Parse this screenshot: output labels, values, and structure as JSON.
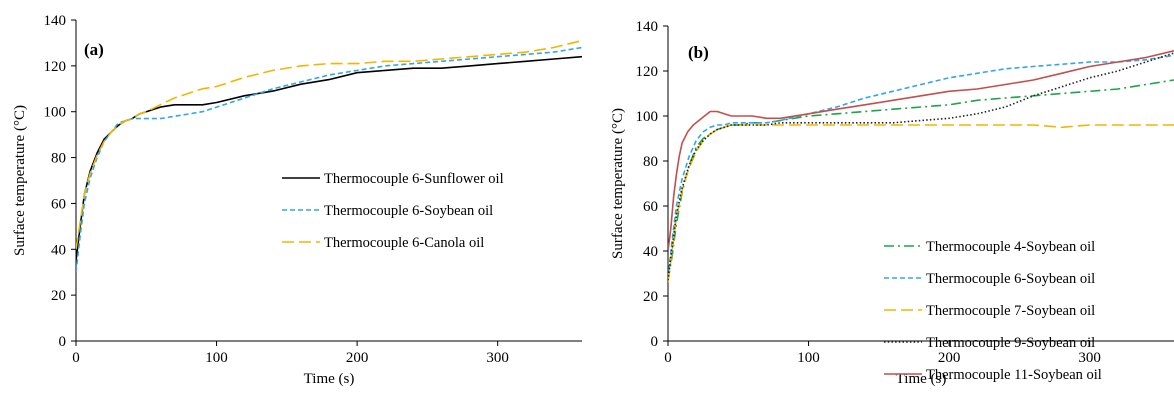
{
  "chart_data": [
    {
      "type": "line",
      "panel_label": "(a)",
      "xlabel": "Time (s)",
      "ylabel": "Surface temperature (°C)",
      "xlim": [
        0,
        360
      ],
      "ylim": [
        0,
        140
      ],
      "xticks": [
        0,
        100,
        200,
        300
      ],
      "yticks": [
        0,
        20,
        40,
        60,
        80,
        100,
        120,
        140
      ],
      "grid": false,
      "legend_position": "center-right",
      "series": [
        {
          "name": "Thermocouple 6-Sunflower oil",
          "color": "#000000",
          "dash": "solid",
          "x": [
            0,
            3,
            6,
            10,
            15,
            20,
            25,
            30,
            35,
            40,
            45,
            50,
            60,
            70,
            80,
            90,
            100,
            120,
            140,
            160,
            180,
            200,
            220,
            240,
            260,
            280,
            300,
            320,
            340,
            360
          ],
          "y": [
            35,
            50,
            64,
            74,
            82,
            88,
            91,
            94,
            96,
            97,
            99,
            100,
            102,
            103,
            103,
            103,
            104,
            107,
            109,
            112,
            114,
            117,
            118,
            119,
            119,
            120,
            121,
            122,
            123,
            124
          ]
        },
        {
          "name": "Thermocouple 6-Soybean oil",
          "color": "#33A6E6",
          "dash": "short",
          "x": [
            0,
            3,
            6,
            10,
            15,
            20,
            25,
            30,
            35,
            40,
            45,
            50,
            60,
            70,
            80,
            90,
            100,
            120,
            140,
            160,
            180,
            200,
            220,
            240,
            260,
            280,
            300,
            320,
            340,
            360
          ],
          "y": [
            30,
            46,
            60,
            71,
            80,
            87,
            91,
            95,
            96,
            97,
            97,
            97,
            97,
            98,
            99,
            100,
            102,
            106,
            110,
            113,
            116,
            118,
            120,
            121,
            122,
            123,
            124,
            125,
            126,
            128
          ]
        },
        {
          "name": "Thermocouple 6-Canola oil",
          "color": "#F2B600",
          "dash": "long",
          "x": [
            0,
            3,
            6,
            10,
            15,
            20,
            25,
            30,
            35,
            40,
            45,
            50,
            60,
            70,
            80,
            90,
            100,
            120,
            140,
            160,
            180,
            200,
            220,
            240,
            260,
            280,
            300,
            320,
            340,
            360
          ],
          "y": [
            40,
            52,
            64,
            73,
            81,
            87,
            91,
            94,
            96,
            97,
            99,
            100,
            103,
            106,
            108,
            110,
            111,
            115,
            118,
            120,
            121,
            121,
            122,
            122,
            123,
            124,
            125,
            126,
            128,
            131
          ]
        }
      ]
    },
    {
      "type": "line",
      "panel_label": "(b)",
      "xlabel": "Time (s)",
      "ylabel": "Surface temperature (°C)",
      "xlim": [
        0,
        360
      ],
      "ylim": [
        0,
        140
      ],
      "xticks": [
        0,
        100,
        200,
        300
      ],
      "yticks": [
        0,
        20,
        40,
        60,
        80,
        100,
        120,
        140
      ],
      "grid": false,
      "legend_position": "center-right",
      "series": [
        {
          "name": "Thermocouple 4-Soybean oil",
          "color": "#1FA34A",
          "dash": "dashdot",
          "x": [
            0,
            3,
            6,
            10,
            15,
            20,
            25,
            30,
            35,
            40,
            45,
            50,
            60,
            70,
            80,
            100,
            120,
            140,
            160,
            180,
            200,
            220,
            240,
            260,
            280,
            300,
            320,
            340,
            360
          ],
          "y": [
            27,
            38,
            52,
            66,
            78,
            86,
            90,
            92,
            94,
            95,
            96,
            96,
            97,
            97,
            98,
            100,
            101,
            102,
            103,
            104,
            105,
            107,
            108,
            109,
            110,
            111,
            112,
            114,
            116
          ]
        },
        {
          "name": "Thermocouple 6-Soybean oil",
          "color": "#33A6E6",
          "dash": "short",
          "x": [
            0,
            3,
            6,
            10,
            15,
            20,
            25,
            30,
            35,
            40,
            45,
            50,
            60,
            70,
            80,
            100,
            120,
            140,
            160,
            180,
            200,
            220,
            240,
            260,
            280,
            300,
            320,
            340,
            360
          ],
          "y": [
            28,
            45,
            60,
            72,
            82,
            89,
            93,
            95,
            96,
            96,
            97,
            97,
            97,
            97,
            98,
            101,
            104,
            108,
            111,
            114,
            117,
            119,
            121,
            122,
            123,
            124,
            124,
            125,
            127
          ]
        },
        {
          "name": "Thermocouple 7-Soybean oil",
          "color": "#F2B600",
          "dash": "long",
          "x": [
            0,
            3,
            6,
            10,
            15,
            20,
            25,
            30,
            35,
            40,
            45,
            50,
            60,
            70,
            80,
            100,
            120,
            140,
            160,
            180,
            200,
            220,
            240,
            260,
            280,
            300,
            320,
            340,
            360
          ],
          "y": [
            26,
            40,
            55,
            67,
            77,
            84,
            89,
            92,
            94,
            95,
            96,
            96,
            96,
            96,
            96,
            96,
            96,
            96,
            96,
            96,
            96,
            96,
            96,
            96,
            95,
            96,
            96,
            96,
            96
          ]
        },
        {
          "name": "Thermocouple 9-Soybean oil",
          "color": "#222222",
          "dash": "dotted",
          "x": [
            0,
            3,
            6,
            10,
            15,
            20,
            25,
            30,
            35,
            40,
            45,
            50,
            60,
            70,
            80,
            100,
            120,
            140,
            160,
            180,
            200,
            220,
            240,
            260,
            280,
            300,
            320,
            340,
            360
          ],
          "y": [
            27,
            42,
            56,
            68,
            78,
            85,
            89,
            92,
            94,
            95,
            96,
            96,
            96,
            96,
            97,
            97,
            97,
            97,
            97,
            98,
            99,
            101,
            104,
            109,
            113,
            117,
            120,
            124,
            128
          ]
        },
        {
          "name": "Thermocouple 11-Soybean oil",
          "color": "#C0504D",
          "dash": "solid",
          "x": [
            0,
            2,
            4,
            6,
            8,
            10,
            14,
            18,
            22,
            26,
            30,
            35,
            40,
            45,
            50,
            60,
            70,
            80,
            100,
            120,
            140,
            160,
            180,
            200,
            220,
            240,
            260,
            280,
            300,
            320,
            340,
            360
          ],
          "y": [
            40,
            50,
            64,
            74,
            82,
            88,
            93,
            96,
            98,
            100,
            102,
            102,
            101,
            100,
            100,
            100,
            99,
            99,
            101,
            103,
            105,
            107,
            109,
            111,
            112,
            114,
            116,
            119,
            122,
            124,
            126,
            129
          ]
        }
      ]
    }
  ]
}
